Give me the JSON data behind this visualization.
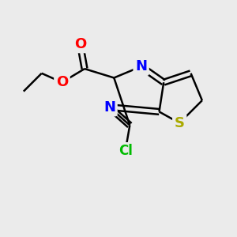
{
  "bg_color": "#ebebeb",
  "atom_colors": {
    "C": "#000000",
    "N": "#0000ff",
    "O": "#ff0000",
    "S": "#aaaa00",
    "Cl": "#00bb00"
  },
  "bond_color": "#000000",
  "bond_width": 1.8,
  "figsize": [
    3.0,
    3.0
  ],
  "dpi": 100
}
